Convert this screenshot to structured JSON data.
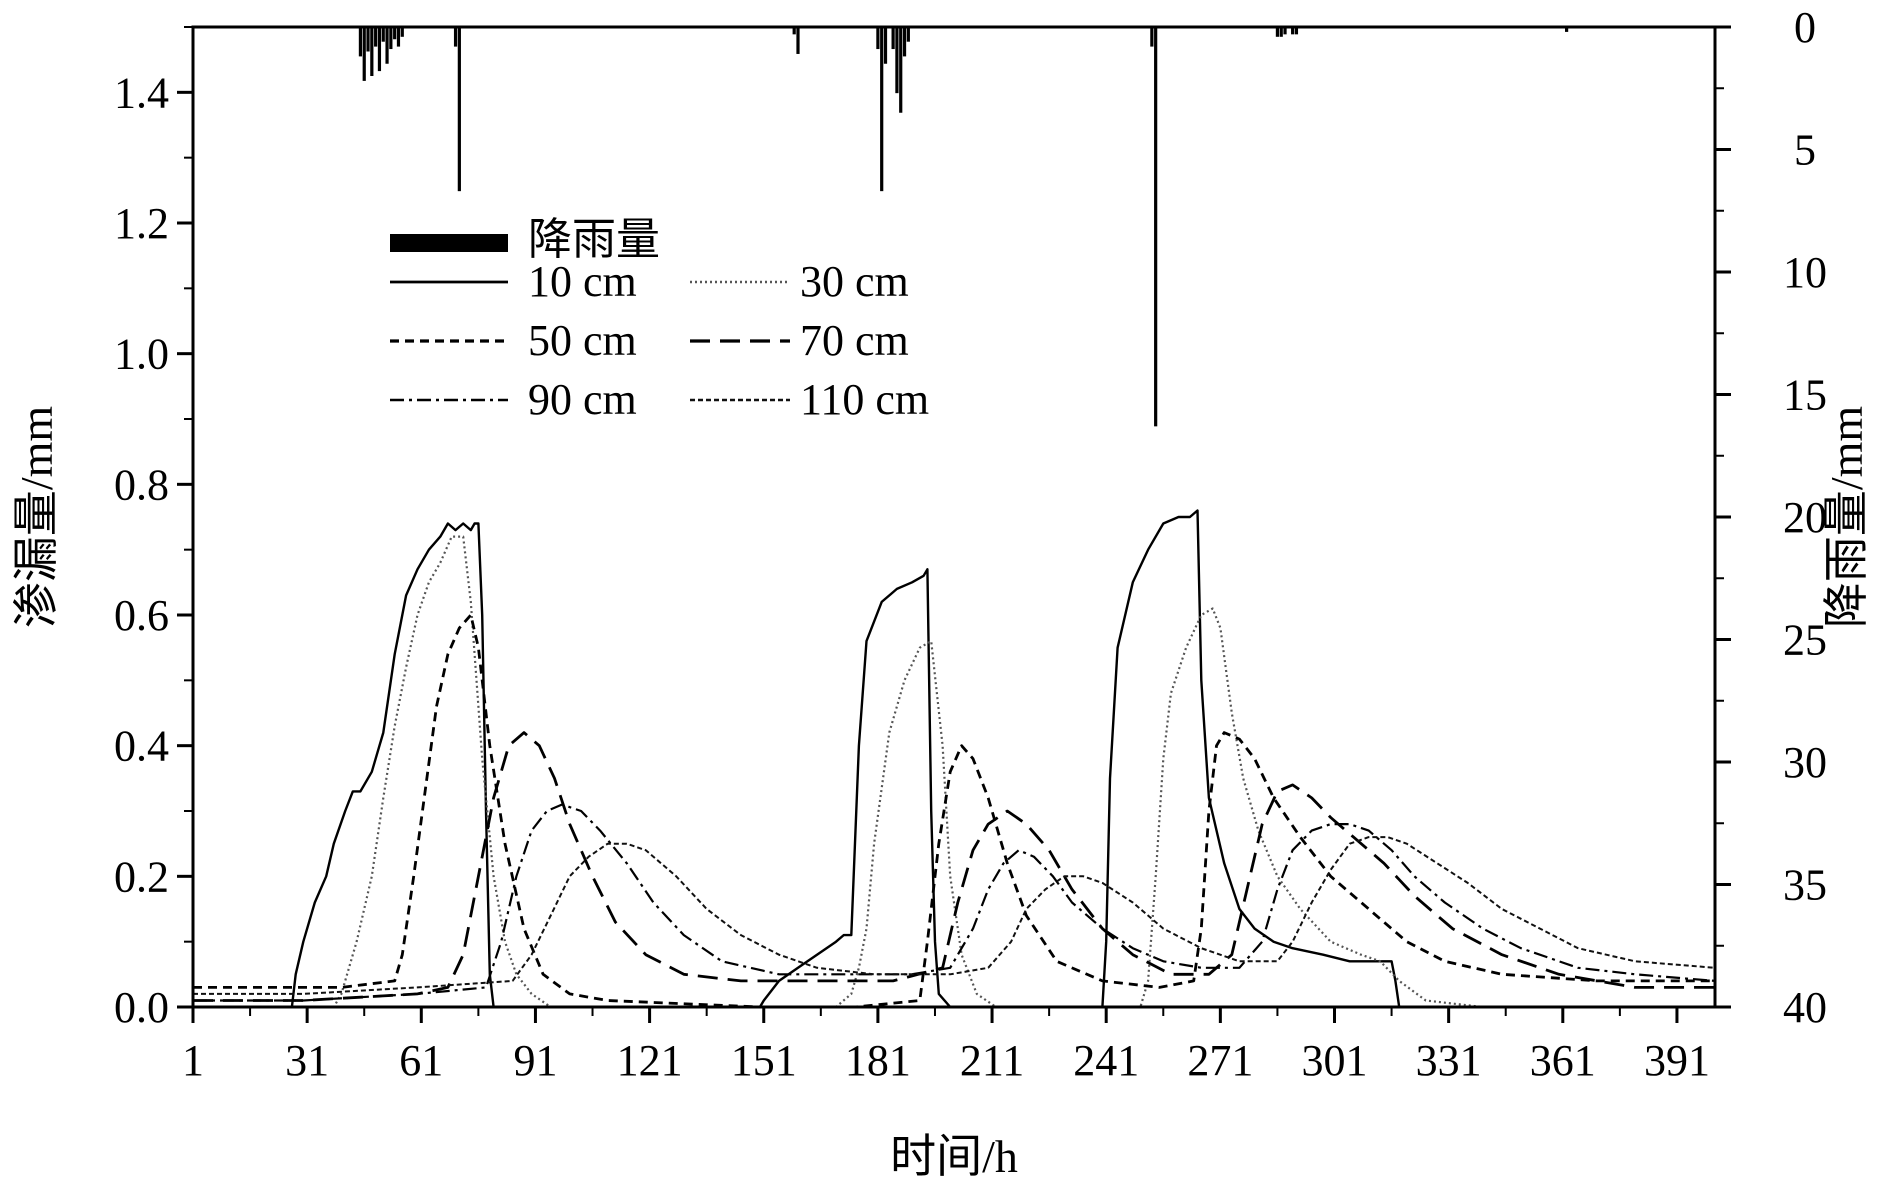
{
  "chart_data": {
    "type": "line",
    "xlabel": "时间/h",
    "ylabel": "渗漏量/mm",
    "y2label": "降雨量/mm",
    "xlim": [
      1,
      401
    ],
    "ylim": [
      0,
      1.5
    ],
    "y2lim": [
      0,
      40
    ],
    "y2_inverted": true,
    "xticks": [
      1,
      31,
      61,
      91,
      121,
      151,
      181,
      211,
      241,
      271,
      301,
      331,
      361,
      391
    ],
    "yticks": [
      0.0,
      0.2,
      0.4,
      0.6,
      0.8,
      1.0,
      1.2,
      1.4
    ],
    "ytick_labels": [
      "0.0",
      "0.2",
      "0.4",
      "0.6",
      "0.8",
      "1.0",
      "1.2",
      "1.4"
    ],
    "y2ticks": [
      0,
      5,
      10,
      15,
      20,
      25,
      30,
      35,
      40
    ],
    "grid": false,
    "legend_placement": "upper-left",
    "rainfall": {
      "name": "降雨量",
      "x": [
        45,
        46,
        47,
        48,
        49,
        50,
        51,
        52,
        53,
        54,
        55,
        56,
        70,
        71,
        159,
        160,
        181,
        182,
        183,
        185,
        186,
        187,
        188,
        189,
        253,
        254,
        286,
        287,
        288,
        290,
        291,
        362
      ],
      "values": [
        1.2,
        2.2,
        1.0,
        2.0,
        0.8,
        1.8,
        0.6,
        1.5,
        0.9,
        0.5,
        0.8,
        0.4,
        0.8,
        6.7,
        0.3,
        1.1,
        0.9,
        6.7,
        1.5,
        0.9,
        2.7,
        3.5,
        1.2,
        0.6,
        0.8,
        16.3,
        0.4,
        0.4,
        0.3,
        0.3,
        0.3,
        0.2
      ]
    },
    "series": [
      {
        "name": "10 cm",
        "x": [
          1,
          25,
          27,
          28,
          30,
          33,
          36,
          38,
          41,
          43,
          45,
          48,
          51,
          54,
          57,
          60,
          63,
          66,
          68,
          70,
          72,
          74,
          75,
          76,
          77,
          78,
          79,
          80,
          130,
          150,
          151,
          155,
          160,
          165,
          170,
          172,
          174,
          176,
          178,
          182,
          186,
          190,
          193,
          194,
          195,
          196,
          197,
          200,
          240,
          241,
          242,
          244,
          248,
          252,
          256,
          260,
          263,
          265,
          266,
          268,
          272,
          276,
          280,
          285,
          290,
          298,
          305,
          316,
          317,
          318,
          401
        ],
        "values": [
          0.0,
          0.0,
          0.0,
          0.05,
          0.1,
          0.16,
          0.2,
          0.25,
          0.3,
          0.33,
          0.33,
          0.36,
          0.42,
          0.54,
          0.63,
          0.67,
          0.7,
          0.72,
          0.74,
          0.73,
          0.74,
          0.73,
          0.74,
          0.74,
          0.6,
          0.3,
          0.05,
          0.0,
          0.0,
          0.0,
          0.01,
          0.04,
          0.06,
          0.08,
          0.1,
          0.11,
          0.11,
          0.4,
          0.56,
          0.62,
          0.64,
          0.65,
          0.66,
          0.67,
          0.3,
          0.1,
          0.02,
          0.0,
          0.0,
          0.1,
          0.35,
          0.55,
          0.65,
          0.7,
          0.74,
          0.75,
          0.75,
          0.76,
          0.5,
          0.32,
          0.22,
          0.15,
          0.12,
          0.1,
          0.09,
          0.08,
          0.07,
          0.07,
          0.04,
          0.0,
          0.0
        ]
      },
      {
        "name": "30 cm",
        "x": [
          1,
          30,
          38,
          40,
          42,
          44,
          46,
          48,
          51,
          54,
          57,
          60,
          63,
          66,
          69,
          72,
          74,
          77,
          80,
          83,
          86,
          90,
          95,
          100,
          106,
          110,
          170,
          174,
          176,
          178,
          180,
          184,
          188,
          192,
          195,
          198,
          200,
          203,
          207,
          212,
          240,
          250,
          252,
          254,
          256,
          258,
          262,
          266,
          269,
          271,
          274,
          277,
          281,
          286,
          292,
          300,
          308,
          313,
          318,
          325,
          340,
          401
        ],
        "values": [
          0.0,
          0.0,
          0.0,
          0.02,
          0.06,
          0.1,
          0.15,
          0.2,
          0.32,
          0.43,
          0.52,
          0.6,
          0.65,
          0.68,
          0.72,
          0.72,
          0.62,
          0.38,
          0.2,
          0.1,
          0.05,
          0.02,
          0.0,
          0.0,
          0.0,
          0.0,
          0.0,
          0.02,
          0.06,
          0.12,
          0.25,
          0.42,
          0.5,
          0.55,
          0.56,
          0.4,
          0.2,
          0.08,
          0.02,
          0.0,
          0.0,
          0.0,
          0.04,
          0.2,
          0.38,
          0.48,
          0.55,
          0.6,
          0.61,
          0.58,
          0.45,
          0.35,
          0.27,
          0.2,
          0.15,
          0.1,
          0.08,
          0.07,
          0.04,
          0.01,
          0.0,
          0.0
        ]
      },
      {
        "name": "50 cm",
        "x": [
          1,
          20,
          40,
          54,
          56,
          59,
          62,
          65,
          68,
          71,
          74,
          76,
          79,
          83,
          88,
          93,
          100,
          110,
          150,
          160,
          175,
          192,
          194,
          197,
          200,
          203,
          206,
          210,
          215,
          220,
          228,
          240,
          255,
          264,
          266,
          268,
          270,
          272,
          276,
          280,
          285,
          292,
          300,
          310,
          320,
          330,
          345,
          370,
          401
        ],
        "values": [
          0.03,
          0.03,
          0.03,
          0.04,
          0.08,
          0.2,
          0.33,
          0.46,
          0.54,
          0.58,
          0.6,
          0.55,
          0.4,
          0.25,
          0.12,
          0.05,
          0.02,
          0.01,
          0.0,
          0.0,
          0.0,
          0.01,
          0.1,
          0.25,
          0.36,
          0.4,
          0.38,
          0.32,
          0.22,
          0.14,
          0.07,
          0.04,
          0.03,
          0.04,
          0.12,
          0.3,
          0.4,
          0.42,
          0.41,
          0.38,
          0.32,
          0.26,
          0.2,
          0.15,
          0.1,
          0.07,
          0.05,
          0.04,
          0.04
        ]
      },
      {
        "name": "70 cm",
        "x": [
          1,
          30,
          60,
          68,
          72,
          76,
          80,
          84,
          88,
          92,
          96,
          100,
          106,
          112,
          120,
          130,
          145,
          165,
          185,
          198,
          202,
          206,
          210,
          215,
          220,
          226,
          232,
          240,
          248,
          258,
          268,
          274,
          278,
          282,
          286,
          290,
          295,
          300,
          306,
          314,
          322,
          332,
          345,
          360,
          380,
          401
        ],
        "values": [
          0.01,
          0.01,
          0.02,
          0.03,
          0.08,
          0.2,
          0.32,
          0.4,
          0.42,
          0.4,
          0.35,
          0.28,
          0.2,
          0.13,
          0.08,
          0.05,
          0.04,
          0.04,
          0.04,
          0.06,
          0.16,
          0.24,
          0.28,
          0.3,
          0.28,
          0.24,
          0.18,
          0.12,
          0.08,
          0.05,
          0.05,
          0.08,
          0.18,
          0.28,
          0.33,
          0.34,
          0.32,
          0.29,
          0.26,
          0.22,
          0.17,
          0.12,
          0.08,
          0.05,
          0.03,
          0.03
        ]
      },
      {
        "name": "90 cm",
        "x": [
          1,
          30,
          60,
          78,
          82,
          86,
          90,
          94,
          98,
          103,
          108,
          115,
          122,
          130,
          140,
          155,
          175,
          190,
          200,
          206,
          210,
          214,
          218,
          222,
          227,
          232,
          240,
          248,
          256,
          266,
          276,
          282,
          286,
          290,
          295,
          300,
          305,
          310,
          316,
          322,
          330,
          340,
          350,
          365,
          380,
          401
        ],
        "values": [
          0.01,
          0.01,
          0.02,
          0.03,
          0.1,
          0.2,
          0.27,
          0.3,
          0.31,
          0.3,
          0.27,
          0.22,
          0.16,
          0.11,
          0.07,
          0.05,
          0.05,
          0.05,
          0.06,
          0.12,
          0.18,
          0.22,
          0.24,
          0.23,
          0.2,
          0.16,
          0.12,
          0.09,
          0.07,
          0.06,
          0.06,
          0.1,
          0.18,
          0.24,
          0.27,
          0.28,
          0.28,
          0.27,
          0.24,
          0.2,
          0.16,
          0.12,
          0.09,
          0.06,
          0.05,
          0.04
        ]
      },
      {
        "name": "110 cm",
        "x": [
          1,
          30,
          60,
          85,
          90,
          95,
          100,
          105,
          110,
          115,
          120,
          128,
          136,
          145,
          155,
          165,
          180,
          200,
          210,
          216,
          220,
          225,
          230,
          235,
          240,
          248,
          256,
          266,
          276,
          286,
          290,
          295,
          300,
          305,
          310,
          315,
          320,
          328,
          336,
          345,
          355,
          365,
          380,
          401
        ],
        "values": [
          0.02,
          0.02,
          0.03,
          0.04,
          0.08,
          0.14,
          0.2,
          0.23,
          0.25,
          0.25,
          0.24,
          0.2,
          0.15,
          0.11,
          0.08,
          0.06,
          0.05,
          0.05,
          0.06,
          0.1,
          0.15,
          0.18,
          0.2,
          0.2,
          0.19,
          0.16,
          0.12,
          0.09,
          0.07,
          0.07,
          0.1,
          0.16,
          0.21,
          0.25,
          0.26,
          0.26,
          0.25,
          0.22,
          0.19,
          0.15,
          0.12,
          0.09,
          0.07,
          0.06
        ]
      }
    ]
  }
}
